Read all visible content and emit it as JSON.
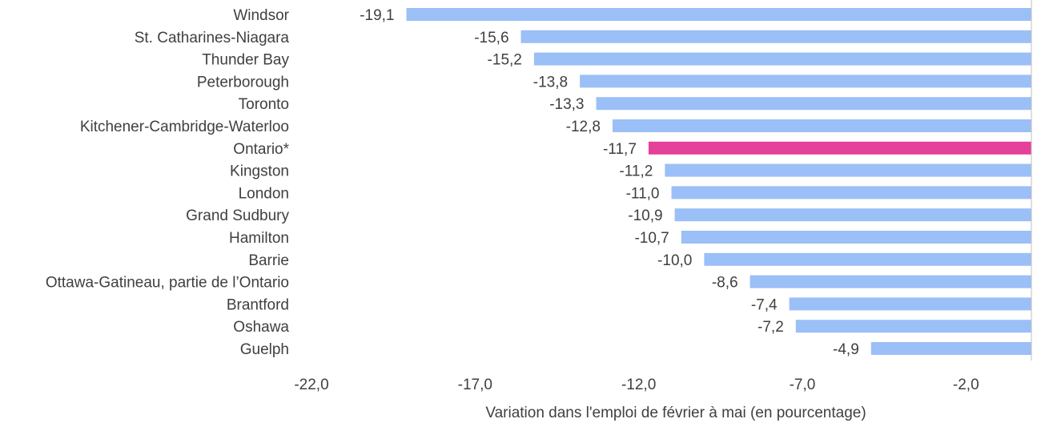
{
  "chart_data": {
    "type": "bar",
    "orientation": "horizontal",
    "categories": [
      "Windsor",
      "St. Catharines-Niagara",
      "Thunder Bay",
      "Peterborough",
      "Toronto",
      "Kitchener-Cambridge-Waterloo",
      "Ontario*",
      "Kingston",
      "London",
      "Grand Sudbury",
      "Hamilton",
      "Barrie",
      "Ottawa-Gatineau, partie de l’Ontario",
      "Brantford",
      "Oshawa",
      "Guelph"
    ],
    "values": [
      -19.1,
      -15.6,
      -15.2,
      -13.8,
      -13.3,
      -12.8,
      -11.7,
      -11.2,
      -11.0,
      -10.9,
      -10.7,
      -10.0,
      -8.6,
      -7.4,
      -7.2,
      -4.9
    ],
    "value_labels": [
      "-19,1",
      "-15,6",
      "-15,2",
      "-13,8",
      "-13,3",
      "-12,8",
      "-11,7",
      "-11,2",
      "-11,0",
      "-10,9",
      "-10,7",
      "-10,0",
      "-8,6",
      "-7,4",
      "-7,2",
      "-4,9"
    ],
    "xlim": [
      -22.0,
      0.0
    ],
    "xticks": [
      -22.0,
      -17.0,
      -12.0,
      -7.0,
      -2.0
    ],
    "xtick_labels": [
      "-22,0",
      "-17,0",
      "-12,0",
      "-7,0",
      "-2,0"
    ],
    "xlabel": "Variation dans l'emploi de février à mai (en pourcentage)",
    "ylabel": "",
    "title": "",
    "grid": false,
    "colors": {
      "default_bar": "#9BBFF7",
      "highlight_bar": "#E5409A",
      "axis_line": "#BFBFBF"
    },
    "highlight_category": "Ontario*"
  }
}
